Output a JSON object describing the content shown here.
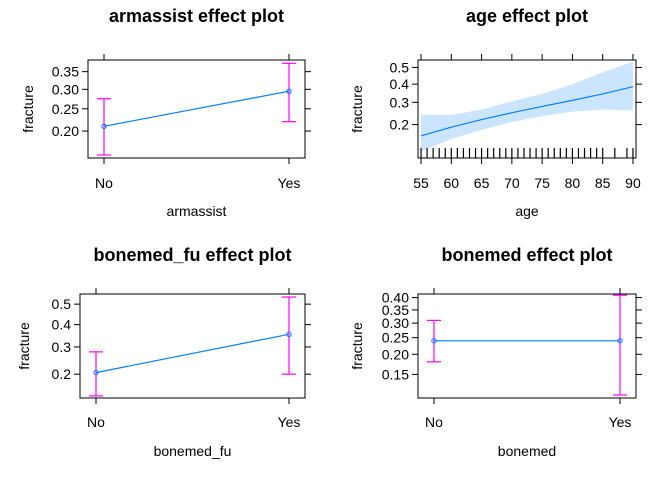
{
  "colors": {
    "line": "#0080ff",
    "band": "#cce5ff",
    "errorbar": "#ff00ff",
    "frame": "#000000",
    "rug": "#000000"
  },
  "chart_data": [
    {
      "type": "line",
      "title": "armassist effect plot",
      "xlabel": "armassist",
      "ylabel": "fracture",
      "categories": [
        "No",
        "Yes"
      ],
      "values": [
        0.21,
        0.295
      ],
      "lower": [
        0.155,
        0.22
      ],
      "upper": [
        0.275,
        0.375
      ],
      "yticks": [
        "0.20",
        "0.25",
        "0.30",
        "0.35"
      ],
      "ylim": [
        0.15,
        0.385
      ],
      "scale": "logit",
      "grid": false
    },
    {
      "type": "area",
      "title": "age effect plot",
      "xlabel": "age",
      "ylabel": "fracture",
      "x": [
        55,
        60,
        65,
        70,
        75,
        80,
        85,
        90
      ],
      "values": [
        0.16,
        0.19,
        0.22,
        0.25,
        0.28,
        0.31,
        0.345,
        0.385
      ],
      "lower": [
        0.115,
        0.15,
        0.18,
        0.21,
        0.235,
        0.255,
        0.265,
        0.26
      ],
      "upper": [
        0.24,
        0.24,
        0.265,
        0.305,
        0.345,
        0.4,
        0.47,
        0.535
      ],
      "xticks": [
        "55",
        "60",
        "65",
        "70",
        "75",
        "80",
        "85",
        "90"
      ],
      "yticks": [
        "0.2",
        "0.3",
        "0.4",
        "0.5"
      ],
      "xlim": [
        54.5,
        90.5
      ],
      "ylim": [
        0.1,
        0.545
      ],
      "scale": "logit",
      "rug": true,
      "grid": false
    },
    {
      "type": "line",
      "title": "bonemed_fu effect plot",
      "xlabel": "bonemed_fu",
      "ylabel": "fracture",
      "categories": [
        "No",
        "Yes"
      ],
      "values": [
        0.205,
        0.355
      ],
      "lower": [
        0.14,
        0.2
      ],
      "upper": [
        0.28,
        0.535
      ],
      "yticks": [
        "0.2",
        "0.3",
        "0.4",
        "0.5"
      ],
      "ylim": [
        0.135,
        0.55
      ],
      "scale": "logit",
      "grid": false
    },
    {
      "type": "line",
      "title": "bonemed effect plot",
      "xlabel": "bonemed",
      "ylabel": "fracture",
      "categories": [
        "No",
        "Yes"
      ],
      "values": [
        0.24,
        0.24
      ],
      "lower": [
        0.18,
        0.11
      ],
      "upper": [
        0.31,
        0.41
      ],
      "yticks": [
        "0.15",
        "0.20",
        "0.25",
        "0.30",
        "0.35",
        "0.40"
      ],
      "ylim": [
        0.105,
        0.415
      ],
      "scale": "logit",
      "grid": false
    }
  ]
}
